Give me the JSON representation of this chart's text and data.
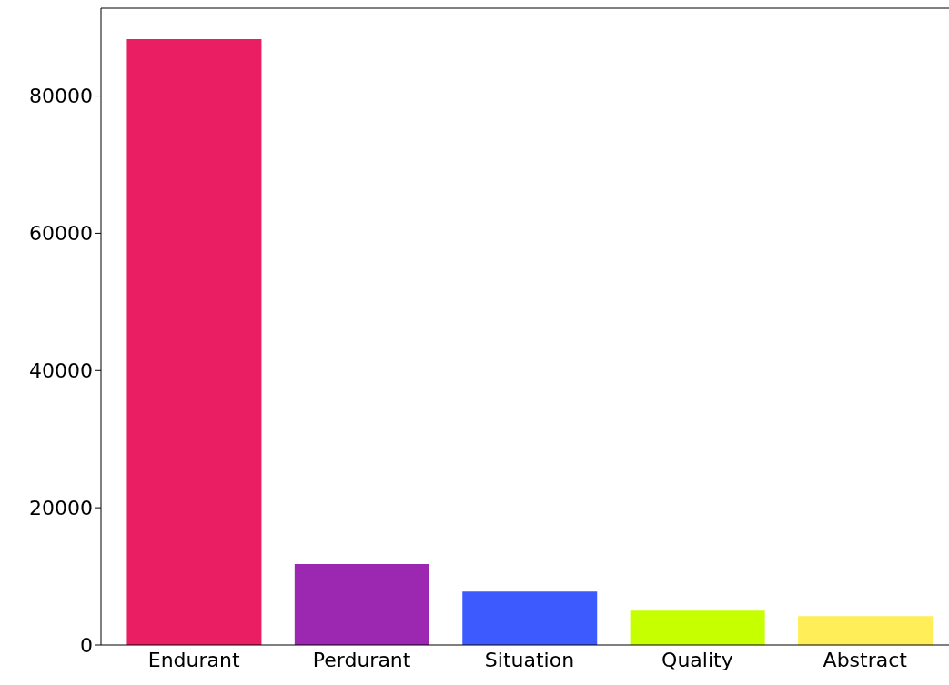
{
  "chart_data": {
    "type": "bar",
    "categories": [
      "Endurant",
      "Perdurant",
      "Situation",
      "Quality",
      "Abstract"
    ],
    "values": [
      88300,
      11800,
      7800,
      5000,
      4200
    ],
    "colors": [
      "#e91e63",
      "#9c27b0",
      "#3d5afe",
      "#c6ff00",
      "#ffee58"
    ],
    "ylim": [
      0,
      92800
    ],
    "yticks": [
      0,
      20000,
      40000,
      60000,
      80000
    ],
    "grid": false,
    "legend": false
  }
}
